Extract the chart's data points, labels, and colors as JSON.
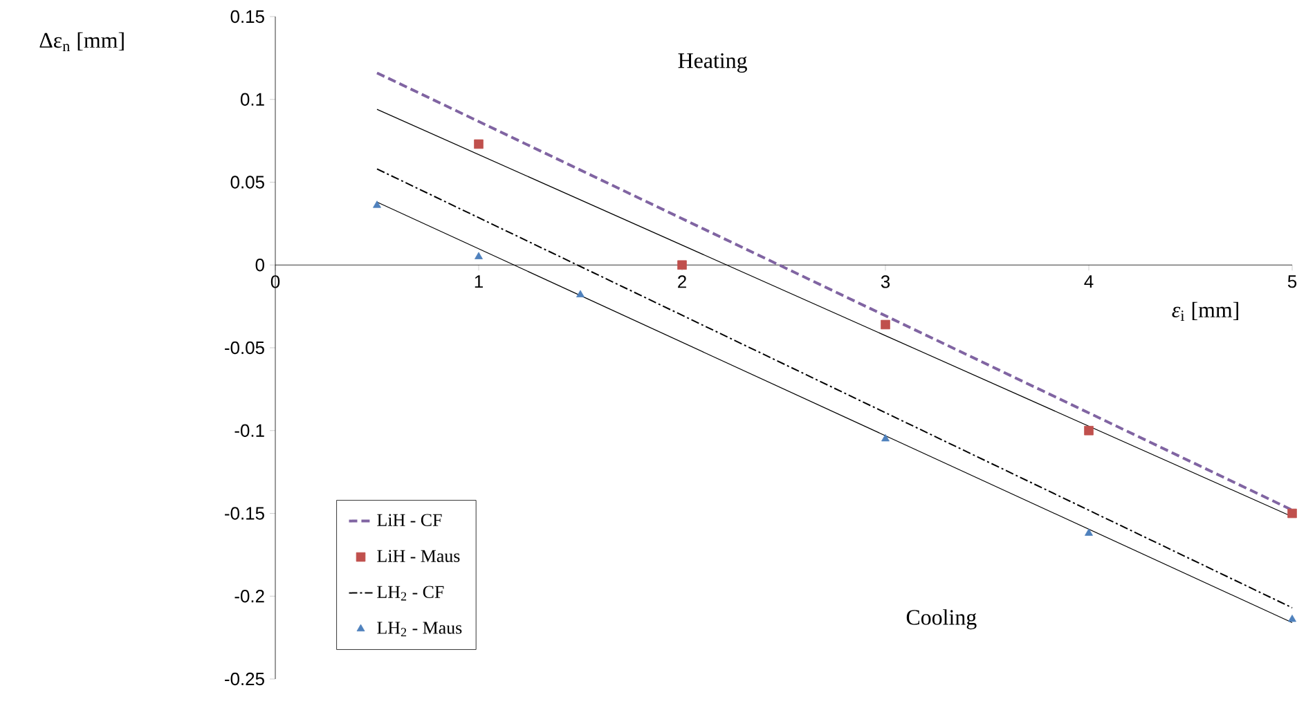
{
  "chart_data": {
    "type": "line",
    "xlabel": "*ε*$_{i}$ [mm]",
    "ylabel": "Δε$_{n}$ [mm]",
    "xlim": [
      0,
      5
    ],
    "ylim": [
      -0.25,
      0.15
    ],
    "xticks": [
      0,
      1,
      2,
      3,
      4,
      5
    ],
    "yticks": [
      -0.25,
      -0.2,
      -0.15,
      -0.1,
      -0.05,
      0,
      0.05,
      0.1,
      0.15
    ],
    "legend": "bottom left",
    "annotations": [
      "Heating",
      "Cooling"
    ],
    "series": [
      {
        "name": "LiH - CF",
        "line_style": "dashed",
        "marker": "none",
        "color": "#8064a2",
        "x": [
          0.5,
          5
        ],
        "values": [
          0.116,
          -0.148
        ]
      },
      {
        "line_style": "solid",
        "marker": "none",
        "color": "#000000",
        "x": [
          0.5,
          5
        ],
        "values": [
          0.094,
          -0.152
        ]
      },
      {
        "name": "LiH - Maus",
        "type": "scatter",
        "marker": "square",
        "color": "#c0504d",
        "x": [
          1,
          2,
          3,
          4,
          5
        ],
        "values": [
          0.073,
          0,
          -0.036,
          -0.1,
          -0.15
        ]
      },
      {
        "name": "LH$_{2}$ - CF",
        "line_style": "dashdot",
        "marker": "none",
        "color": "#000000",
        "x": [
          0.5,
          5
        ],
        "values": [
          0.058,
          -0.207
        ]
      },
      {
        "line_style": "solid",
        "marker": "none",
        "color": "#000000",
        "x": [
          0.5,
          5
        ],
        "values": [
          0.038,
          -0.216
        ]
      },
      {
        "name": "LH$_{2}$ - Maus",
        "type": "scatter",
        "marker": "triangle",
        "color": "#4f81bd",
        "x": [
          0.5,
          1,
          1.5,
          3,
          4,
          5
        ],
        "values": [
          0.036,
          0.005,
          -0.018,
          -0.105,
          -0.162,
          -0.214
        ]
      }
    ]
  }
}
